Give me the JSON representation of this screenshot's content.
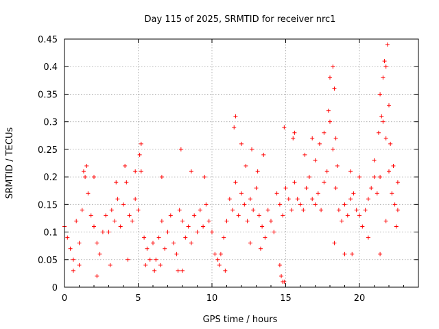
{
  "chart_data": {
    "type": "scatter",
    "title": "Day 115 of 2025, SRMTID for receiver nrc1",
    "xlabel": "GPS time / hours",
    "ylabel": "SRMTID / TECUs",
    "xlim": [
      0,
      24
    ],
    "ylim": [
      0,
      0.45
    ],
    "xticks": [
      0,
      5,
      10,
      15,
      20
    ],
    "xtick_labels": [
      "0",
      "5",
      "10",
      "15",
      "20"
    ],
    "yticks": [
      0,
      0.05,
      0.1,
      0.15,
      0.2,
      0.25,
      0.3,
      0.35,
      0.4,
      0.45
    ],
    "ytick_labels": [
      "0",
      "0.05",
      "0.1",
      "0.15",
      "0.2",
      "0.25",
      "0.3",
      "0.35",
      "0.4",
      "0.45"
    ],
    "grid": true,
    "marker": "+",
    "color": "#ff0000",
    "series": [
      {
        "name": "SRMTID",
        "points": [
          [
            0.0,
            0.11
          ],
          [
            0.2,
            0.09
          ],
          [
            0.4,
            0.07
          ],
          [
            0.6,
            0.05
          ],
          [
            0.8,
            0.12
          ],
          [
            1.0,
            0.08
          ],
          [
            1.2,
            0.14
          ],
          [
            1.4,
            0.2
          ],
          [
            1.6,
            0.17
          ],
          [
            1.8,
            0.13
          ],
          [
            2.0,
            0.11
          ],
          [
            2.2,
            0.08
          ],
          [
            2.4,
            0.06
          ],
          [
            2.6,
            0.1
          ],
          [
            2.8,
            0.13
          ],
          [
            3.0,
            0.1
          ],
          [
            3.2,
            0.14
          ],
          [
            3.4,
            0.12
          ],
          [
            3.6,
            0.16
          ],
          [
            3.8,
            0.11
          ],
          [
            4.0,
            0.15
          ],
          [
            4.2,
            0.19
          ],
          [
            4.4,
            0.13
          ],
          [
            4.6,
            0.12
          ],
          [
            4.8,
            0.16
          ],
          [
            5.0,
            0.14
          ],
          [
            5.2,
            0.21
          ],
          [
            5.4,
            0.09
          ],
          [
            5.6,
            0.07
          ],
          [
            5.8,
            0.05
          ],
          [
            6.0,
            0.08
          ],
          [
            6.2,
            0.05
          ],
          [
            6.4,
            0.09
          ],
          [
            6.6,
            0.12
          ],
          [
            6.8,
            0.07
          ],
          [
            7.0,
            0.1
          ],
          [
            7.2,
            0.13
          ],
          [
            7.4,
            0.08
          ],
          [
            7.6,
            0.06
          ],
          [
            7.8,
            0.14
          ],
          [
            8.0,
            0.12
          ],
          [
            8.2,
            0.09
          ],
          [
            8.4,
            0.11
          ],
          [
            8.6,
            0.08
          ],
          [
            8.8,
            0.13
          ],
          [
            9.0,
            0.1
          ],
          [
            9.2,
            0.14
          ],
          [
            9.4,
            0.11
          ],
          [
            9.6,
            0.15
          ],
          [
            9.8,
            0.12
          ],
          [
            10.0,
            0.1
          ],
          [
            10.2,
            0.06
          ],
          [
            10.4,
            0.05
          ],
          [
            10.6,
            0.06
          ],
          [
            10.8,
            0.09
          ],
          [
            11.0,
            0.12
          ],
          [
            11.2,
            0.16
          ],
          [
            11.4,
            0.14
          ],
          [
            11.6,
            0.19
          ],
          [
            11.8,
            0.13
          ],
          [
            12.0,
            0.17
          ],
          [
            12.2,
            0.15
          ],
          [
            12.4,
            0.12
          ],
          [
            12.6,
            0.16
          ],
          [
            12.8,
            0.14
          ],
          [
            13.0,
            0.18
          ],
          [
            13.2,
            0.13
          ],
          [
            13.4,
            0.11
          ],
          [
            13.6,
            0.09
          ],
          [
            13.8,
            0.14
          ],
          [
            14.0,
            0.12
          ],
          [
            14.2,
            0.1
          ],
          [
            14.4,
            0.17
          ],
          [
            14.6,
            0.15
          ],
          [
            14.8,
            0.13
          ],
          [
            15.0,
            0.18
          ],
          [
            15.2,
            0.16
          ],
          [
            15.4,
            0.14
          ],
          [
            15.6,
            0.19
          ],
          [
            15.8,
            0.16
          ],
          [
            16.0,
            0.15
          ],
          [
            16.2,
            0.14
          ],
          [
            16.4,
            0.18
          ],
          [
            16.6,
            0.2
          ],
          [
            16.8,
            0.16
          ],
          [
            17.0,
            0.15
          ],
          [
            17.2,
            0.17
          ],
          [
            17.4,
            0.14
          ],
          [
            17.6,
            0.19
          ],
          [
            17.8,
            0.21
          ],
          [
            18.0,
            0.3
          ],
          [
            18.2,
            0.25
          ],
          [
            18.4,
            0.18
          ],
          [
            18.6,
            0.14
          ],
          [
            18.8,
            0.12
          ],
          [
            19.0,
            0.15
          ],
          [
            19.2,
            0.13
          ],
          [
            19.4,
            0.16
          ],
          [
            19.6,
            0.17
          ],
          [
            19.8,
            0.14
          ],
          [
            20.0,
            0.13
          ],
          [
            20.2,
            0.11
          ],
          [
            20.4,
            0.14
          ],
          [
            20.6,
            0.16
          ],
          [
            20.8,
            0.18
          ],
          [
            21.0,
            0.2
          ],
          [
            21.2,
            0.17
          ],
          [
            21.4,
            0.2
          ],
          [
            21.6,
            0.3
          ],
          [
            21.8,
            0.27
          ],
          [
            22.0,
            0.21
          ],
          [
            22.2,
            0.17
          ],
          [
            22.4,
            0.15
          ],
          [
            22.6,
            0.14
          ],
          [
            0.6,
            0.03
          ],
          [
            1.0,
            0.04
          ],
          [
            2.2,
            0.02
          ],
          [
            3.1,
            0.04
          ],
          [
            4.3,
            0.05
          ],
          [
            5.5,
            0.04
          ],
          [
            6.1,
            0.03
          ],
          [
            6.5,
            0.04
          ],
          [
            7.7,
            0.03
          ],
          [
            8.0,
            0.03
          ],
          [
            10.5,
            0.04
          ],
          [
            10.9,
            0.03
          ],
          [
            12.6,
            0.08
          ],
          [
            13.3,
            0.07
          ],
          [
            14.6,
            0.04
          ],
          [
            14.7,
            0.02
          ],
          [
            14.8,
            0.01
          ],
          [
            14.9,
            0.01
          ],
          [
            18.3,
            0.08
          ],
          [
            19.0,
            0.06
          ],
          [
            19.5,
            0.06
          ],
          [
            20.6,
            0.09
          ],
          [
            21.4,
            0.06
          ],
          [
            21.8,
            0.12
          ],
          [
            22.5,
            0.11
          ],
          [
            1.3,
            0.21
          ],
          [
            1.5,
            0.22
          ],
          [
            2.0,
            0.2
          ],
          [
            3.5,
            0.19
          ],
          [
            4.1,
            0.22
          ],
          [
            4.8,
            0.21
          ],
          [
            5.1,
            0.24
          ],
          [
            5.2,
            0.26
          ],
          [
            6.6,
            0.2
          ],
          [
            7.9,
            0.25
          ],
          [
            8.6,
            0.21
          ],
          [
            9.5,
            0.2
          ],
          [
            11.5,
            0.29
          ],
          [
            11.6,
            0.31
          ],
          [
            12.0,
            0.26
          ],
          [
            12.3,
            0.22
          ],
          [
            12.7,
            0.25
          ],
          [
            13.1,
            0.21
          ],
          [
            13.5,
            0.24
          ],
          [
            14.9,
            0.29
          ],
          [
            15.5,
            0.27
          ],
          [
            15.6,
            0.28
          ],
          [
            16.3,
            0.24
          ],
          [
            16.8,
            0.27
          ],
          [
            17.0,
            0.23
          ],
          [
            17.3,
            0.26
          ],
          [
            17.6,
            0.28
          ],
          [
            17.9,
            0.32
          ],
          [
            18.0,
            0.38
          ],
          [
            18.2,
            0.4
          ],
          [
            18.3,
            0.36
          ],
          [
            18.4,
            0.27
          ],
          [
            18.5,
            0.22
          ],
          [
            19.4,
            0.21
          ],
          [
            20.0,
            0.2
          ],
          [
            21.0,
            0.23
          ],
          [
            21.3,
            0.28
          ],
          [
            21.4,
            0.35
          ],
          [
            21.5,
            0.31
          ],
          [
            21.6,
            0.38
          ],
          [
            21.7,
            0.41
          ],
          [
            21.8,
            0.4
          ],
          [
            21.9,
            0.44
          ],
          [
            22.0,
            0.33
          ],
          [
            22.1,
            0.26
          ],
          [
            22.3,
            0.22
          ],
          [
            22.6,
            0.19
          ]
        ]
      }
    ]
  }
}
